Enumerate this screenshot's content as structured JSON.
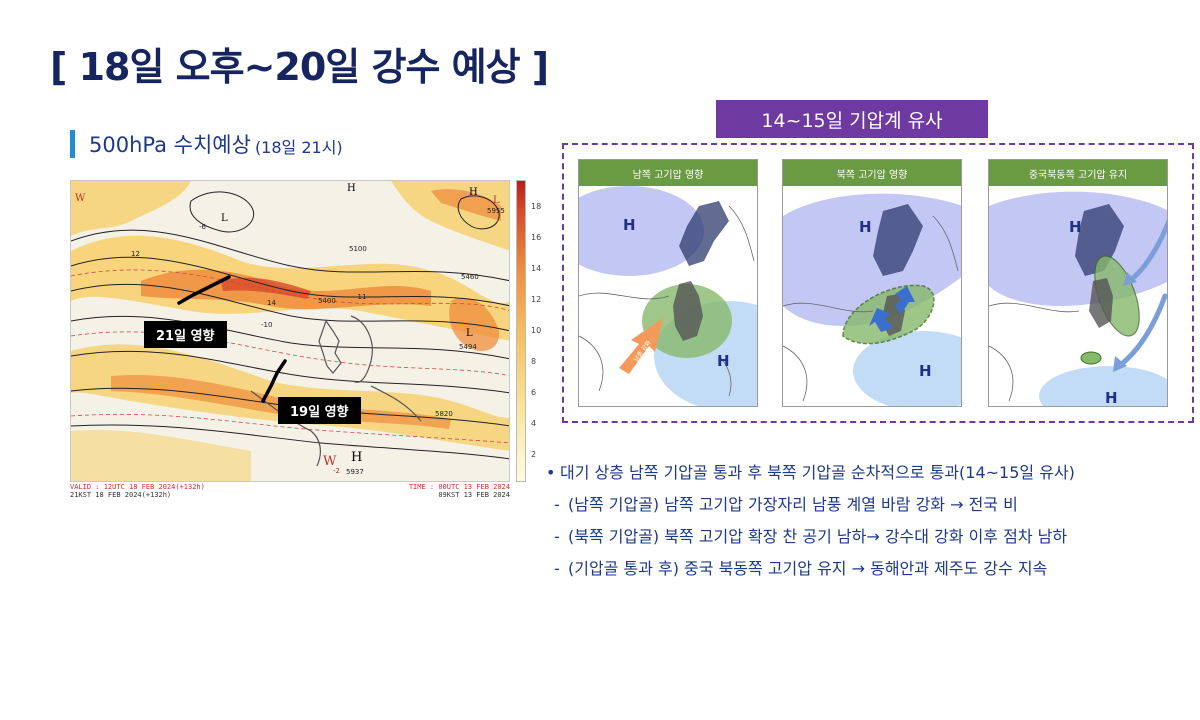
{
  "title": "[ 18일 오후~20일 강수 예상 ]",
  "left_section": {
    "heading": "500hPa 수치예상",
    "heading_note": "(18일 21시)",
    "tags": {
      "day21": "21일 영향",
      "day19": "19일 영향"
    },
    "map_labels": {
      "w_top_left": "W",
      "l_top": "L",
      "h_top": "H",
      "h_top_right": "H",
      "l_top_right": "L",
      "l_right": "L",
      "w_bottom": "W",
      "h_bottom": "H",
      "h_bottom_value": "5937",
      "c_5100": "5100",
      "c_5400": "5400",
      "c_5460": "5460",
      "c_5820": "5820",
      "c_5494": "5494",
      "c_5955": "5955",
      "t_m6": "-6",
      "t_m10": "-10",
      "t_m11": "-11",
      "t_m2": "-2",
      "t_12": "12",
      "t_14": "14"
    },
    "footer": {
      "valid": "VALID : 12UTC 18 FEB 2024(+132h)",
      "valid_kst": "21KST 18 FEB 2024(+132h)",
      "time": "TIME : 00UTC 13 FEB 2024",
      "time_kst": "09KST 13 FEB 2024"
    },
    "colorbar_ticks": [
      "18",
      "16",
      "14",
      "12",
      "10",
      "8",
      "6",
      "4",
      "2"
    ]
  },
  "right_section": {
    "analog_title": "14~15일 기압계 유사",
    "panels": [
      {
        "header": "남쪽 고기압 영향",
        "labels": [
          "H",
          "H",
          "남풍 강화"
        ]
      },
      {
        "header": "북쪽 고기압 영향",
        "labels": [
          "H",
          "H"
        ]
      },
      {
        "header": "중국북동쪽 고기압 유지",
        "labels": [
          "H",
          "H"
        ]
      }
    ]
  },
  "bullets": {
    "main": "대기 상층 남쪽 기압골 통과 후 북쪽 기압골 순차적으로 통과(14~15일 유사)",
    "items": [
      "(남쪽 기압골) 남쪽 고기압 가장자리 남풍 계열 바람 강화 → 전국 비",
      "(북쪽 기압골) 북쪽 고기압 확장 찬 공기 남하→ 강수대 강화 이후 점차 남하",
      "(기압골 통과 후) 중국 북동쪽 고기압 유지 → 동해안과 제주도 강수 지속"
    ]
  },
  "colors": {
    "title": "#16245f",
    "text": "#1d3a8a",
    "accent_bar": "#1f8ed6",
    "analog_purple": "#6e3aa2",
    "panel_header_green": "#6a9b43"
  }
}
